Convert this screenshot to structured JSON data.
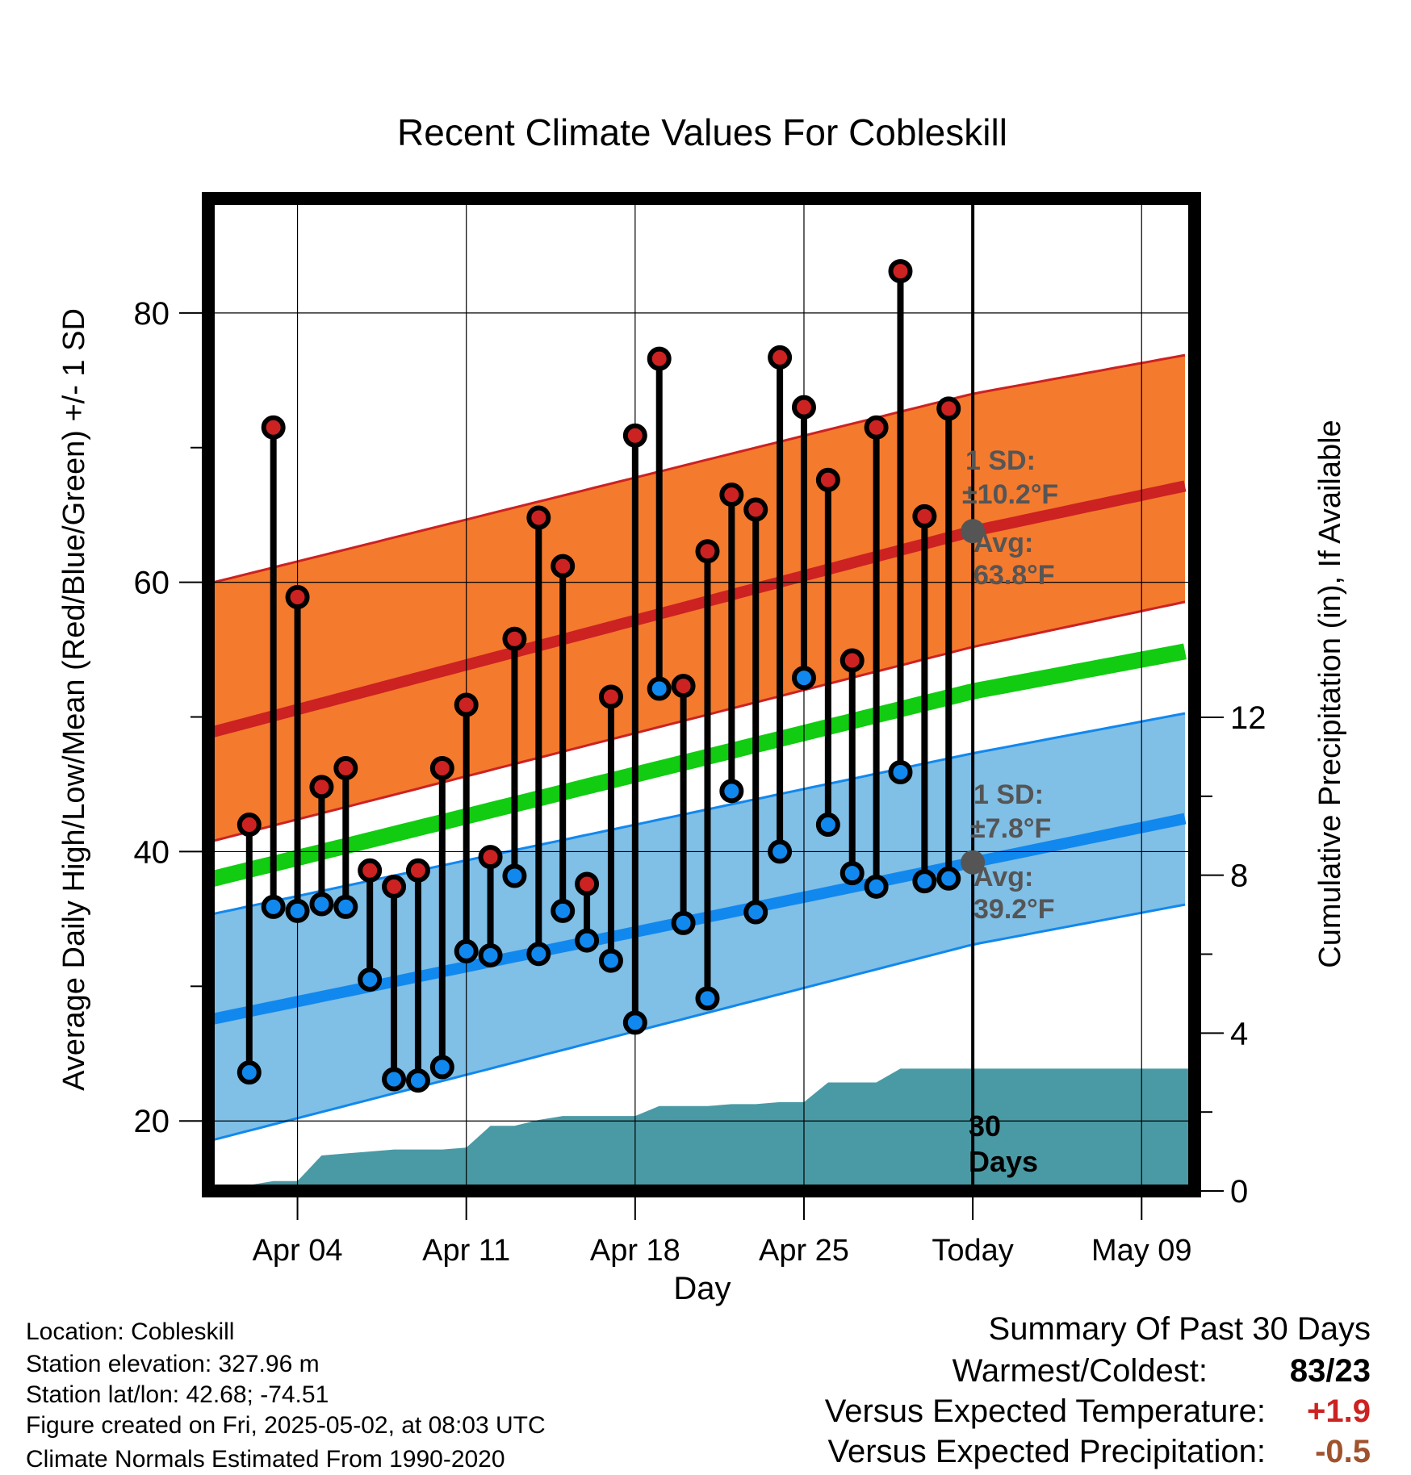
{
  "chart_data": {
    "type": "line",
    "title": "Recent Climate Values For Cobleskill",
    "xlabel": "Day",
    "ylabel_left": "Average Daily High/Low/Mean (Red/Blue/Green) +/- 1 SD",
    "ylabel_right": "Cumulative Precipitation (in), If Available",
    "x_ticks": [
      {
        "day": 4,
        "label": "Apr 04"
      },
      {
        "day": 11,
        "label": "Apr 11"
      },
      {
        "day": 18,
        "label": "Apr 18"
      },
      {
        "day": 25,
        "label": "Apr 25"
      },
      {
        "day": 32,
        "label": "Today"
      },
      {
        "day": 39,
        "label": "May 09"
      }
    ],
    "xlim_days": [
      0.3,
      41.2
    ],
    "ylim_left": [
      14.8,
      88.5
    ],
    "y_ticks_left": [
      20,
      40,
      60,
      80
    ],
    "y_ticks_right": [
      0,
      4,
      8,
      12
    ],
    "ylim_right_origin": 0,
    "today_day": 32,
    "normals": {
      "high_avg": [
        [
          0.3,
          48.8
        ],
        [
          32,
          63.8
        ],
        [
          41.2,
          67.3
        ]
      ],
      "high_band_upper": [
        [
          0.3,
          59.9
        ],
        [
          32,
          74.0
        ],
        [
          41.2,
          77.0
        ]
      ],
      "high_band_lower": [
        [
          0.3,
          40.7
        ],
        [
          32,
          55.2
        ],
        [
          41.2,
          58.7
        ]
      ],
      "mean_avg": [
        [
          0.3,
          37.9
        ],
        [
          32,
          51.9
        ],
        [
          41.2,
          55.0
        ]
      ],
      "low_avg": [
        [
          0.3,
          27.5
        ],
        [
          32,
          39.2
        ],
        [
          41.2,
          42.6
        ]
      ],
      "low_band_upper": [
        [
          0.3,
          35.3
        ],
        [
          32,
          47.3
        ],
        [
          41.2,
          50.4
        ]
      ],
      "low_band_lower": [
        [
          0.3,
          18.5
        ],
        [
          32,
          33.1
        ],
        [
          41.2,
          36.2
        ]
      ]
    },
    "series": [
      {
        "name": "High",
        "color": "#cc2222",
        "values": [
          [
            2,
            42.0
          ],
          [
            3,
            71.5
          ],
          [
            4,
            58.9
          ],
          [
            5,
            44.8
          ],
          [
            6,
            46.2
          ],
          [
            7,
            38.6
          ],
          [
            8,
            37.4
          ],
          [
            9,
            38.6
          ],
          [
            10,
            46.2
          ],
          [
            11,
            50.9
          ],
          [
            12,
            39.6
          ],
          [
            13,
            55.8
          ],
          [
            14,
            64.8
          ],
          [
            15,
            61.2
          ],
          [
            16,
            37.6
          ],
          [
            17,
            51.5
          ],
          [
            18,
            70.9
          ],
          [
            19,
            76.6
          ],
          [
            20,
            52.3
          ],
          [
            21,
            62.3
          ],
          [
            22,
            66.5
          ],
          [
            23,
            65.4
          ],
          [
            24,
            76.7
          ],
          [
            25,
            73.0
          ],
          [
            26,
            67.6
          ],
          [
            27,
            54.2
          ],
          [
            28,
            71.5
          ],
          [
            29,
            83.1
          ],
          [
            30,
            64.9
          ],
          [
            31,
            72.9
          ]
        ]
      },
      {
        "name": "Low",
        "color": "#1188ee",
        "values": [
          [
            2,
            23.6
          ],
          [
            3,
            35.9
          ],
          [
            4,
            35.6
          ],
          [
            5,
            36.1
          ],
          [
            6,
            35.9
          ],
          [
            7,
            30.5
          ],
          [
            8,
            23.1
          ],
          [
            9,
            23.0
          ],
          [
            10,
            24.0
          ],
          [
            11,
            32.6
          ],
          [
            12,
            32.3
          ],
          [
            13,
            38.2
          ],
          [
            14,
            32.4
          ],
          [
            15,
            35.6
          ],
          [
            16,
            33.4
          ],
          [
            17,
            31.9
          ],
          [
            18,
            27.3
          ],
          [
            19,
            52.1
          ],
          [
            20,
            34.7
          ],
          [
            21,
            29.1
          ],
          [
            22,
            44.5
          ],
          [
            23,
            35.5
          ],
          [
            24,
            40.0
          ],
          [
            25,
            52.9
          ],
          [
            26,
            42.0
          ],
          [
            27,
            38.4
          ],
          [
            28,
            37.4
          ],
          [
            29,
            45.9
          ],
          [
            30,
            37.8
          ],
          [
            31,
            38.0
          ]
        ]
      }
    ],
    "precipitation_cumulative": [
      [
        1,
        0.0
      ],
      [
        2,
        0.15
      ],
      [
        3,
        0.25
      ],
      [
        4,
        0.25
      ],
      [
        5,
        0.9
      ],
      [
        6,
        0.95
      ],
      [
        7,
        1.0
      ],
      [
        8,
        1.05
      ],
      [
        9,
        1.05
      ],
      [
        10,
        1.05
      ],
      [
        11,
        1.1
      ],
      [
        12,
        1.65
      ],
      [
        13,
        1.65
      ],
      [
        14,
        1.8
      ],
      [
        15,
        1.9
      ],
      [
        16,
        1.9
      ],
      [
        17,
        1.9
      ],
      [
        18,
        1.9
      ],
      [
        19,
        2.15
      ],
      [
        20,
        2.15
      ],
      [
        21,
        2.15
      ],
      [
        22,
        2.2
      ],
      [
        23,
        2.2
      ],
      [
        24,
        2.25
      ],
      [
        25,
        2.25
      ],
      [
        26,
        2.75
      ],
      [
        27,
        2.75
      ],
      [
        28,
        2.75
      ],
      [
        29,
        3.1
      ],
      [
        30,
        3.1
      ],
      [
        31,
        3.1
      ],
      [
        32,
        3.1
      ],
      [
        41.2,
        3.1
      ]
    ],
    "annotations": {
      "high_sd_label": "1 SD:",
      "high_sd_value": "±10.2°F",
      "high_avg_label": "Avg:",
      "high_avg_value": "63.8°F",
      "low_sd_label": "1 SD:",
      "low_sd_value": "±7.8°F",
      "low_avg_label": "Avg:",
      "low_avg_value": "39.2°F",
      "period_number": "30",
      "period_unit": "Days"
    },
    "colors": {
      "high_band": "#f47a2e",
      "high_line": "#cc2222",
      "mean_line": "#11cc11",
      "low_band": "#80bfe6",
      "low_line": "#1188ee",
      "precip": "#4a9aa5",
      "high_dot": "#cc2222",
      "low_dot": "#1188ee",
      "stem": "#000000",
      "today_dot": "#555555"
    }
  },
  "footer": {
    "location": "Location: Cobleskill",
    "elevation": "Station elevation: 327.96 m",
    "latlon": "Station lat/lon: 42.68; -74.51",
    "created": "Figure created on Fri, 2025-05-02, at 08:03 UTC",
    "normals": "Climate Normals Estimated From 1990-2020"
  },
  "summary": {
    "title": "Summary Of Past 30 Days",
    "warm_cold_label": "Warmest/Coldest:",
    "warm_cold_value": "83/23",
    "temp_label": "Versus Expected Temperature:",
    "temp_value": "+1.9",
    "temp_color": "#cc2222",
    "precip_label": "Versus Expected Precipitation:",
    "precip_value": "-0.5",
    "precip_color": "#a0522d"
  }
}
